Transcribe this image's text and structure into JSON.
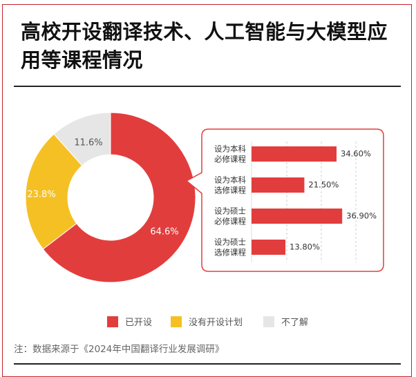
{
  "header": {
    "title": "高校开设翻译技术、人工智能与大模型应用等课程情况"
  },
  "chart_data": [
    {
      "type": "pie",
      "donut": true,
      "categories": [
        "已开设",
        "没有开设计划",
        "不了解"
      ],
      "values": [
        64.6,
        23.8,
        11.6
      ],
      "data_labels": [
        "64.6%",
        "23.8%",
        "11.6%"
      ],
      "colors": [
        "#e23d3d",
        "#f5c024",
        "#e6e6e6"
      ],
      "legend_position": "bottom"
    },
    {
      "type": "bar",
      "orientation": "horizontal",
      "categories": [
        [
          "设为本科",
          "必修课程"
        ],
        [
          "设为本科",
          "选修课程"
        ],
        [
          "设为硕士",
          "必修课程"
        ],
        [
          "设为硕士",
          "选修课程"
        ]
      ],
      "values": [
        34.6,
        21.5,
        36.9,
        13.8
      ],
      "data_labels": [
        "34.60%",
        "21.50%",
        "36.90%",
        "13.80%"
      ],
      "color": "#e23d3d",
      "grid": "vertical dashed",
      "note": "breakdown of 已开设"
    }
  ],
  "legend": [
    {
      "label": "已开设",
      "color": "#e23d3d"
    },
    {
      "label": "没有开设计划",
      "color": "#f5c024"
    },
    {
      "label": "不了解",
      "color": "#e6e6e6"
    }
  ],
  "footnote": "注：数据来源于《2024年中国翻译行业发展调研》",
  "accent": "#c8202a"
}
